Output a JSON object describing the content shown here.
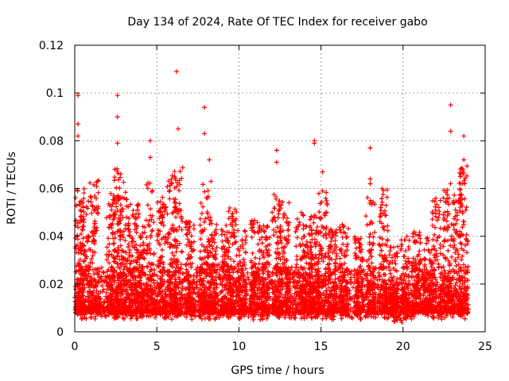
{
  "chart_data": {
    "type": "scatter",
    "title": "Day 134 of 2024, Rate Of TEC Index for receiver gabo",
    "xlabel": "GPS time / hours",
    "ylabel": "ROTI / TECUs",
    "xlim": [
      0,
      25
    ],
    "ylim": [
      0,
      0.12
    ],
    "xticks": [
      0,
      5,
      10,
      15,
      20,
      25
    ],
    "xtick_labels": [
      "0",
      "5",
      "10",
      "15",
      "20",
      "25"
    ],
    "yticks": [
      0,
      0.02,
      0.04,
      0.06,
      0.08,
      0.1,
      0.12
    ],
    "ytick_labels": [
      "0",
      "0.02",
      "0.04",
      "0.06",
      "0.08",
      "0.1",
      "0.12"
    ],
    "grid": true,
    "marker": "+",
    "color": "#ff0000",
    "series": [
      {
        "name": "ROTI",
        "x_range": [
          0,
          24
        ],
        "baseline_range": [
          0.005,
          0.025
        ],
        "notable_points": [
          {
            "x": 0.2,
            "y": 0.099
          },
          {
            "x": 0.2,
            "y": 0.087
          },
          {
            "x": 0.2,
            "y": 0.082
          },
          {
            "x": 2.6,
            "y": 0.099
          },
          {
            "x": 2.6,
            "y": 0.09
          },
          {
            "x": 2.6,
            "y": 0.079
          },
          {
            "x": 4.6,
            "y": 0.08
          },
          {
            "x": 4.6,
            "y": 0.073
          },
          {
            "x": 6.2,
            "y": 0.109
          },
          {
            "x": 6.3,
            "y": 0.085
          },
          {
            "x": 7.9,
            "y": 0.094
          },
          {
            "x": 7.9,
            "y": 0.083
          },
          {
            "x": 8.2,
            "y": 0.072
          },
          {
            "x": 8.3,
            "y": 0.063
          },
          {
            "x": 12.3,
            "y": 0.076
          },
          {
            "x": 12.3,
            "y": 0.071
          },
          {
            "x": 14.6,
            "y": 0.08
          },
          {
            "x": 14.6,
            "y": 0.079
          },
          {
            "x": 15.1,
            "y": 0.067
          },
          {
            "x": 15.1,
            "y": 0.059
          },
          {
            "x": 18.0,
            "y": 0.077
          },
          {
            "x": 18.0,
            "y": 0.064
          },
          {
            "x": 18.0,
            "y": 0.062
          },
          {
            "x": 22.9,
            "y": 0.095
          },
          {
            "x": 22.9,
            "y": 0.084
          },
          {
            "x": 23.7,
            "y": 0.082
          },
          {
            "x": 23.7,
            "y": 0.072
          }
        ],
        "activity_bursts": [
          {
            "x": 0.3,
            "peak": 0.06
          },
          {
            "x": 0.6,
            "peak": 0.057
          },
          {
            "x": 1.2,
            "peak": 0.064
          },
          {
            "x": 2.2,
            "peak": 0.058
          },
          {
            "x": 2.6,
            "peak": 0.07
          },
          {
            "x": 2.9,
            "peak": 0.065
          },
          {
            "x": 3.5,
            "peak": 0.057
          },
          {
            "x": 4.0,
            "peak": 0.055
          },
          {
            "x": 4.6,
            "peak": 0.063
          },
          {
            "x": 5.3,
            "peak": 0.058
          },
          {
            "x": 5.9,
            "peak": 0.068
          },
          {
            "x": 6.3,
            "peak": 0.07
          },
          {
            "x": 7.0,
            "peak": 0.048
          },
          {
            "x": 7.9,
            "peak": 0.063
          },
          {
            "x": 8.4,
            "peak": 0.05
          },
          {
            "x": 9.2,
            "peak": 0.045
          },
          {
            "x": 9.6,
            "peak": 0.052
          },
          {
            "x": 10.2,
            "peak": 0.043
          },
          {
            "x": 11.0,
            "peak": 0.047
          },
          {
            "x": 11.6,
            "peak": 0.045
          },
          {
            "x": 12.3,
            "peak": 0.06
          },
          {
            "x": 12.8,
            "peak": 0.055
          },
          {
            "x": 13.7,
            "peak": 0.05
          },
          {
            "x": 14.2,
            "peak": 0.045
          },
          {
            "x": 14.6,
            "peak": 0.049
          },
          {
            "x": 15.1,
            "peak": 0.059
          },
          {
            "x": 15.7,
            "peak": 0.043
          },
          {
            "x": 16.4,
            "peak": 0.045
          },
          {
            "x": 17.3,
            "peak": 0.041
          },
          {
            "x": 18.0,
            "peak": 0.06
          },
          {
            "x": 18.8,
            "peak": 0.06
          },
          {
            "x": 19.4,
            "peak": 0.036
          },
          {
            "x": 20.1,
            "peak": 0.04
          },
          {
            "x": 20.8,
            "peak": 0.043
          },
          {
            "x": 21.5,
            "peak": 0.04
          },
          {
            "x": 22.0,
            "peak": 0.058
          },
          {
            "x": 22.7,
            "peak": 0.063
          },
          {
            "x": 23.3,
            "peak": 0.06
          },
          {
            "x": 23.7,
            "peak": 0.07
          }
        ]
      }
    ]
  }
}
